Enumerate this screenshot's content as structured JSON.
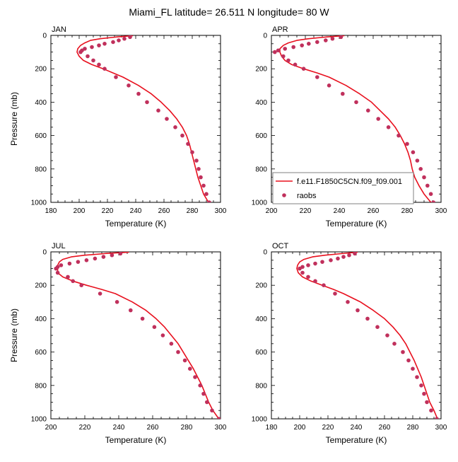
{
  "title": "Miami_FL  latitude= 26.511 N longitude= 80 W",
  "legend": {
    "model_label": "f.e11.F1850C5CN.f09_f09.001",
    "obs_label": "raobs"
  },
  "colors": {
    "model": "#e8101e",
    "obs": "#c0305c",
    "axis": "#000000",
    "legend_border": "#808080"
  },
  "chart_data": [
    {
      "type": "line",
      "title": "JAN",
      "xlabel": "Temperature (K)",
      "ylabel": "Pressure (mb)",
      "xlim": [
        180,
        300
      ],
      "ylim": [
        1000,
        0
      ],
      "xticks": [
        180,
        200,
        220,
        240,
        260,
        280,
        300
      ],
      "yticks": [
        0,
        200,
        400,
        600,
        800,
        1000
      ],
      "series": [
        {
          "name": "f.e11.F1850C5CN.f09_f09.001",
          "kind": "line",
          "points": [
            [
              238,
              2
            ],
            [
              226,
              10
            ],
            [
              215,
              20
            ],
            [
              208,
              30
            ],
            [
              204,
              45
            ],
            [
              201,
              60
            ],
            [
              199,
              80
            ],
            [
              198.5,
              100
            ],
            [
              200,
              125
            ],
            [
              203,
              150
            ],
            [
              209,
              175
            ],
            [
              217,
              200
            ],
            [
              224,
              225
            ],
            [
              231,
              250
            ],
            [
              242,
              300
            ],
            [
              251,
              350
            ],
            [
              258,
              400
            ],
            [
              264,
              450
            ],
            [
              269,
              500
            ],
            [
              273,
              550
            ],
            [
              276,
              600
            ],
            [
              278,
              650
            ],
            [
              279.5,
              700
            ],
            [
              281,
              750
            ],
            [
              282.5,
              800
            ],
            [
              284,
              850
            ],
            [
              286,
              900
            ],
            [
              288,
              950
            ],
            [
              291.5,
              1000
            ]
          ]
        },
        {
          "name": "raobs",
          "kind": "scatter",
          "points": [
            [
              236,
              10
            ],
            [
              232,
              20
            ],
            [
              228,
              30
            ],
            [
              224,
              40
            ],
            [
              218,
              50
            ],
            [
              214,
              60
            ],
            [
              209,
              70
            ],
            [
              204,
              80
            ],
            [
              202,
              90
            ],
            [
              201,
              100
            ],
            [
              206,
              125
            ],
            [
              210,
              150
            ],
            [
              214,
              175
            ],
            [
              218,
              200
            ],
            [
              226,
              250
            ],
            [
              235,
              300
            ],
            [
              242,
              350
            ],
            [
              248,
              400
            ],
            [
              256,
              450
            ],
            [
              262,
              500
            ],
            [
              268,
              550
            ],
            [
              273,
              600
            ],
            [
              277,
              650
            ],
            [
              280,
              700
            ],
            [
              283,
              750
            ],
            [
              284.5,
              800
            ],
            [
              286,
              850
            ],
            [
              288,
              900
            ],
            [
              290,
              950
            ],
            [
              292,
              1000
            ]
          ]
        }
      ]
    },
    {
      "type": "line",
      "title": "APR",
      "xlabel": "Temperature (K)",
      "ylabel": "",
      "xlim": [
        200,
        300
      ],
      "ylim": [
        1000,
        0
      ],
      "xticks": [
        200,
        220,
        240,
        260,
        280,
        300
      ],
      "yticks": [
        0,
        200,
        400,
        600,
        800,
        1000
      ],
      "series": [
        {
          "name": "f.e11.F1850C5CN.f09_f09.001",
          "kind": "line",
          "points": [
            [
              243,
              2
            ],
            [
              232,
              10
            ],
            [
              222,
              20
            ],
            [
              215,
              30
            ],
            [
              210,
              45
            ],
            [
              207,
              60
            ],
            [
              205,
              80
            ],
            [
              205,
              100
            ],
            [
              206,
              125
            ],
            [
              208,
              150
            ],
            [
              212,
              175
            ],
            [
              219,
              200
            ],
            [
              227,
              225
            ],
            [
              234,
              250
            ],
            [
              244,
              300
            ],
            [
              252,
              350
            ],
            [
              259,
              400
            ],
            [
              264,
              450
            ],
            [
              269,
              500
            ],
            [
              273,
              550
            ],
            [
              276,
              600
            ],
            [
              278.5,
              650
            ],
            [
              280.5,
              700
            ],
            [
              282,
              750
            ],
            [
              283,
              800
            ],
            [
              284.5,
              850
            ],
            [
              287,
              900
            ],
            [
              290,
              950
            ],
            [
              294,
              1000
            ]
          ]
        },
        {
          "name": "raobs",
          "kind": "scatter",
          "points": [
            [
              241,
              10
            ],
            [
              236,
              20
            ],
            [
              232,
              30
            ],
            [
              227,
              40
            ],
            [
              222,
              50
            ],
            [
              218,
              60
            ],
            [
              213,
              70
            ],
            [
              208,
              80
            ],
            [
              204,
              90
            ],
            [
              202,
              100
            ],
            [
              207,
              125
            ],
            [
              210,
              150
            ],
            [
              214,
              175
            ],
            [
              219,
              200
            ],
            [
              227,
              250
            ],
            [
              234,
              300
            ],
            [
              242,
              350
            ],
            [
              250,
              400
            ],
            [
              257,
              450
            ],
            [
              263,
              500
            ],
            [
              269,
              550
            ],
            [
              275,
              600
            ],
            [
              280,
              650
            ],
            [
              283.5,
              700
            ],
            [
              286,
              750
            ],
            [
              288,
              800
            ],
            [
              290,
              850
            ],
            [
              292,
              900
            ],
            [
              294,
              950
            ],
            [
              295.5,
              1000
            ]
          ]
        }
      ]
    },
    {
      "type": "line",
      "title": "JUL",
      "xlabel": "Temperature (K)",
      "ylabel": "Pressure (mb)",
      "xlim": [
        200,
        300
      ],
      "ylim": [
        1000,
        0
      ],
      "xticks": [
        200,
        220,
        240,
        260,
        280,
        300
      ],
      "yticks": [
        0,
        200,
        400,
        600,
        800,
        1000
      ],
      "series": [
        {
          "name": "f.e11.F1850C5CN.f09_f09.001",
          "kind": "line",
          "points": [
            [
              246,
              2
            ],
            [
              232,
              10
            ],
            [
              220,
              20
            ],
            [
              212,
              30
            ],
            [
              207,
              45
            ],
            [
              205,
              60
            ],
            [
              204,
              80
            ],
            [
              204,
              100
            ],
            [
              204,
              125
            ],
            [
              207,
              150
            ],
            [
              213,
              175
            ],
            [
              221,
              200
            ],
            [
              230,
              225
            ],
            [
              238,
              250
            ],
            [
              248,
              300
            ],
            [
              256,
              350
            ],
            [
              262,
              400
            ],
            [
              267,
              450
            ],
            [
              271,
              500
            ],
            [
              275,
              550
            ],
            [
              278,
              600
            ],
            [
              281,
              650
            ],
            [
              284,
              700
            ],
            [
              286.5,
              750
            ],
            [
              289,
              800
            ],
            [
              291,
              850
            ],
            [
              293,
              900
            ],
            [
              295.5,
              950
            ],
            [
              299,
              1000
            ]
          ]
        },
        {
          "name": "raobs",
          "kind": "scatter",
          "points": [
            [
              241,
              10
            ],
            [
              236,
              20
            ],
            [
              231,
              30
            ],
            [
              226,
              40
            ],
            [
              221,
              50
            ],
            [
              216,
              60
            ],
            [
              211,
              70
            ],
            [
              206,
              80
            ],
            [
              204,
              90
            ],
            [
              203,
              100
            ],
            [
              204,
              125
            ],
            [
              210,
              150
            ],
            [
              213,
              175
            ],
            [
              218,
              200
            ],
            [
              229,
              250
            ],
            [
              239,
              300
            ],
            [
              247,
              350
            ],
            [
              254,
              400
            ],
            [
              261,
              450
            ],
            [
              266,
              500
            ],
            [
              271,
              550
            ],
            [
              275,
              600
            ],
            [
              279,
              650
            ],
            [
              282,
              700
            ],
            [
              285,
              750
            ],
            [
              288,
              800
            ],
            [
              290,
              850
            ],
            [
              292,
              900
            ],
            [
              295,
              950
            ],
            [
              299,
              1000
            ]
          ]
        }
      ]
    },
    {
      "type": "line",
      "title": "OCT",
      "xlabel": "Temperature (K)",
      "ylabel": "",
      "xlim": [
        180,
        300
      ],
      "ylim": [
        1000,
        0
      ],
      "xticks": [
        180,
        200,
        220,
        240,
        260,
        280,
        300
      ],
      "yticks": [
        0,
        200,
        400,
        600,
        800,
        1000
      ],
      "series": [
        {
          "name": "f.e11.F1850C5CN.f09_f09.001",
          "kind": "line",
          "points": [
            [
              241,
              2
            ],
            [
              230,
              10
            ],
            [
              218,
              20
            ],
            [
              209,
              30
            ],
            [
              203,
              45
            ],
            [
              200,
              60
            ],
            [
              198.5,
              80
            ],
            [
              198,
              100
            ],
            [
              199,
              125
            ],
            [
              202,
              150
            ],
            [
              208,
              175
            ],
            [
              216,
              200
            ],
            [
              224,
              225
            ],
            [
              231,
              250
            ],
            [
              243,
              300
            ],
            [
              252,
              350
            ],
            [
              260,
              400
            ],
            [
              266,
              450
            ],
            [
              271,
              500
            ],
            [
              275,
              550
            ],
            [
              278,
              600
            ],
            [
              281,
              650
            ],
            [
              283.5,
              700
            ],
            [
              286,
              750
            ],
            [
              288,
              800
            ],
            [
              290,
              850
            ],
            [
              292,
              900
            ],
            [
              295,
              950
            ],
            [
              297.5,
              1000
            ]
          ]
        },
        {
          "name": "raobs",
          "kind": "scatter",
          "points": [
            [
              239,
              10
            ],
            [
              235,
              20
            ],
            [
              231,
              30
            ],
            [
              227,
              40
            ],
            [
              222,
              50
            ],
            [
              216,
              60
            ],
            [
              211,
              70
            ],
            [
              206,
              80
            ],
            [
              202,
              90
            ],
            [
              200,
              100
            ],
            [
              202,
              125
            ],
            [
              206,
              150
            ],
            [
              211,
              175
            ],
            [
              217,
              200
            ],
            [
              225,
              250
            ],
            [
              234,
              300
            ],
            [
              241,
              350
            ],
            [
              248,
              400
            ],
            [
              255,
              450
            ],
            [
              262,
              500
            ],
            [
              267,
              550
            ],
            [
              273,
              600
            ],
            [
              277,
              650
            ],
            [
              280,
              700
            ],
            [
              283,
              750
            ],
            [
              286,
              800
            ],
            [
              288,
              850
            ],
            [
              290,
              900
            ],
            [
              293,
              950
            ],
            [
              297,
              1000
            ]
          ]
        }
      ]
    }
  ]
}
